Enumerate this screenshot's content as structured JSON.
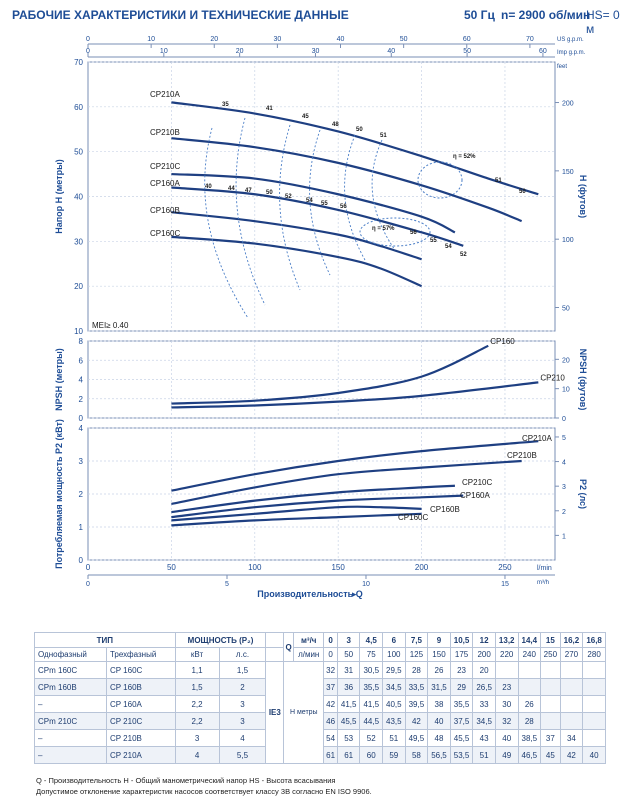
{
  "header": {
    "title": "РАБОЧИЕ ХАРАКТЕРИСТИКИ И ТЕХНИЧЕСКИЕ ДАННЫЕ",
    "freq": "50 Гц",
    "speed": "n= 2900 об/мин",
    "hs": "HS= 0 м"
  },
  "top_axes": {
    "usgpm": {
      "label": "US g.p.m.",
      "ticks": [
        "0",
        "10",
        "20",
        "30",
        "40",
        "50",
        "60",
        "70"
      ]
    },
    "impgpm": {
      "label": "Imp g.p.m.",
      "ticks": [
        "0",
        "10",
        "20",
        "30",
        "40",
        "50",
        "60"
      ]
    }
  },
  "chart_data": [
    {
      "type": "line",
      "id": "head",
      "ylabel": "Напор H (метры)",
      "ylabel2": "H (футов)",
      "y2unit": "feet",
      "xlim": [
        0,
        280
      ],
      "ylim": [
        10,
        70
      ],
      "yticks": [
        "10",
        "20",
        "30",
        "40",
        "50",
        "60",
        "70"
      ],
      "y2ticks": [
        "50",
        "100",
        "150",
        "200"
      ],
      "mei": "MEI≥ 0.40",
      "series": [
        {
          "name": "CP210A",
          "x": [
            50,
            100,
            150,
            200,
            240,
            270
          ],
          "y": [
            61,
            58.5,
            54.5,
            49,
            44,
            40.5
          ]
        },
        {
          "name": "CP210B",
          "x": [
            50,
            100,
            150,
            200,
            240,
            260
          ],
          "y": [
            53,
            51,
            47.5,
            42.5,
            37.5,
            34.5
          ]
        },
        {
          "name": "CP210C",
          "x": [
            50,
            100,
            150,
            200,
            220
          ],
          "y": [
            45,
            44,
            40.5,
            35.5,
            32
          ]
        },
        {
          "name": "CP160A",
          "x": [
            50,
            100,
            150,
            200,
            225
          ],
          "y": [
            42,
            40.5,
            37,
            32,
            29
          ]
        },
        {
          "name": "CP160B",
          "x": [
            50,
            100,
            150,
            175,
            200
          ],
          "y": [
            36.5,
            34.5,
            31.5,
            29,
            26
          ]
        },
        {
          "name": "CP160C",
          "x": [
            50,
            100,
            150,
            175,
            200
          ],
          "y": [
            31,
            29.5,
            26.5,
            24,
            20
          ]
        }
      ],
      "efficiency": [
        "35",
        "41",
        "45",
        "48",
        "50",
        "51",
        "52%",
        "57%"
      ],
      "curve_labels": [
        "40",
        "44",
        "47",
        "50",
        "52",
        "54",
        "55",
        "56",
        "51",
        "50",
        "56",
        "55",
        "54",
        "52"
      ]
    },
    {
      "type": "line",
      "id": "npsh",
      "ylabel": "NPSH (метры)",
      "ylabel2": "NPSH (футов)",
      "xlim": [
        0,
        280
      ],
      "ylim": [
        0,
        8
      ],
      "yticks": [
        "0",
        "2",
        "4",
        "6",
        "8"
      ],
      "y2ticks": [
        "0",
        "10",
        "20"
      ],
      "series": [
        {
          "name": "CP160",
          "x": [
            50,
            100,
            150,
            200,
            240
          ],
          "y": [
            1.5,
            1.8,
            2.6,
            4.3,
            7.5
          ]
        },
        {
          "name": "CP210",
          "x": [
            50,
            100,
            150,
            200,
            270
          ],
          "y": [
            1.1,
            1.3,
            1.7,
            2.3,
            3.7
          ]
        }
      ]
    },
    {
      "type": "line",
      "id": "power",
      "ylabel": "Потребляемая мощность P2 (кВт)",
      "ylabel2": "P2 (лс)",
      "xlabel": "Производительность Q",
      "xlim": [
        0,
        280
      ],
      "ylim": [
        0,
        4
      ],
      "xticks": [
        "0",
        "50",
        "100",
        "150",
        "200",
        "250"
      ],
      "xunit": "l/min",
      "x2ticks": [
        "0",
        "5",
        "10",
        "15"
      ],
      "x2unit": "m³/h",
      "yticks": [
        "0",
        "1",
        "2",
        "3",
        "4"
      ],
      "y2ticks": [
        "1",
        "2",
        "3",
        "4",
        "5"
      ],
      "series": [
        {
          "name": "CP210A",
          "x": [
            50,
            100,
            150,
            200,
            270
          ],
          "y": [
            2.1,
            2.6,
            3.0,
            3.3,
            3.6
          ]
        },
        {
          "name": "CP210B",
          "x": [
            50,
            100,
            150,
            200,
            260
          ],
          "y": [
            1.7,
            2.2,
            2.6,
            2.8,
            3.0
          ]
        },
        {
          "name": "CP210C",
          "x": [
            50,
            100,
            150,
            200,
            220
          ],
          "y": [
            1.45,
            1.8,
            2.05,
            2.2,
            2.25
          ]
        },
        {
          "name": "CP160A",
          "x": [
            50,
            100,
            150,
            200,
            225
          ],
          "y": [
            1.3,
            1.6,
            1.8,
            1.9,
            1.95
          ]
        },
        {
          "name": "CP160B",
          "x": [
            50,
            100,
            150,
            175,
            200
          ],
          "y": [
            1.2,
            1.4,
            1.6,
            1.6,
            1.55
          ]
        },
        {
          "name": "CP160C",
          "x": [
            50,
            100,
            150,
            175,
            200
          ],
          "y": [
            1.05,
            1.2,
            1.3,
            1.35,
            1.4
          ]
        }
      ]
    }
  ],
  "table": {
    "type_hdr": "ТИП",
    "power_hdr": "МОЩНОСТЬ (P₂)",
    "one_phase": "Однофазный",
    "three_phase": "Трехфазный",
    "kw": "кВт",
    "hp": "л.с.",
    "q": "Q",
    "q_unit1": "м³/ч",
    "q_unit2": "л/мин",
    "ie3": "IE3",
    "h_lbl": "H",
    "h_unit": "метры",
    "q_m3h": [
      "0",
      "3",
      "4,5",
      "6",
      "7,5",
      "9",
      "10,5",
      "12",
      "13,2",
      "14,4",
      "15",
      "16,2",
      "16,8"
    ],
    "q_lmin": [
      "0",
      "50",
      "75",
      "100",
      "125",
      "150",
      "175",
      "200",
      "220",
      "240",
      "250",
      "270",
      "280"
    ],
    "rows": [
      {
        "one": "CPm 160C",
        "three": "CP 160C",
        "kw": "1,1",
        "hp": "1,5",
        "h": [
          "32",
          "31",
          "30,5",
          "29,5",
          "28",
          "26",
          "23",
          "20",
          "",
          "",
          "",
          "",
          ""
        ]
      },
      {
        "one": "CPm 160B",
        "three": "CP 160B",
        "kw": "1,5",
        "hp": "2",
        "h": [
          "37",
          "36",
          "35,5",
          "34,5",
          "33,5",
          "31,5",
          "29",
          "26,5",
          "23",
          "",
          "",
          "",
          ""
        ]
      },
      {
        "one": "–",
        "three": "CP 160A",
        "kw": "2,2",
        "hp": "3",
        "h": [
          "42",
          "41,5",
          "41,5",
          "40,5",
          "39,5",
          "38",
          "35,5",
          "33",
          "30",
          "26",
          "",
          "",
          ""
        ]
      },
      {
        "one": "CPm 210C",
        "three": "CP 210C",
        "kw": "2,2",
        "hp": "3",
        "h": [
          "46",
          "45,5",
          "44,5",
          "43,5",
          "42",
          "40",
          "37,5",
          "34,5",
          "32",
          "28",
          "",
          "",
          ""
        ]
      },
      {
        "one": "–",
        "three": "CP 210B",
        "kw": "3",
        "hp": "4",
        "h": [
          "54",
          "53",
          "52",
          "51",
          "49,5",
          "48",
          "45,5",
          "43",
          "40",
          "38,5",
          "37",
          "34",
          ""
        ]
      },
      {
        "one": "–",
        "three": "CP 210A",
        "kw": "4",
        "hp": "5,5",
        "h": [
          "61",
          "61",
          "60",
          "59",
          "58",
          "56,5",
          "53,5",
          "51",
          "49",
          "46,5",
          "45",
          "42",
          "40"
        ]
      }
    ]
  },
  "footer": {
    "line1": "Q - Производительность   H - Общий манометрический напор   HS - Высота всасывания",
    "line2": "Допустимое отклонение характеристик насосов соответствует классу 3B согласно EN ISO 9906."
  },
  "colors": {
    "curve": "#1e3f82",
    "grid": "#c9d4e6",
    "axis": "#7a8fb5",
    "text": "#1e4d96"
  }
}
